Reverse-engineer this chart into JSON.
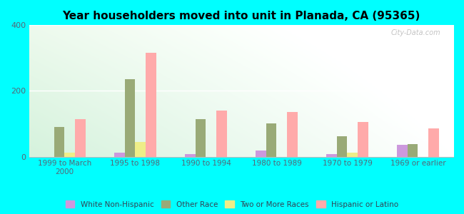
{
  "title": "Year householders moved into unit in Planada, CA (95365)",
  "categories": [
    "1999 to March\n2000",
    "1995 to 1998",
    "1990 to 1994",
    "1980 to 1989",
    "1970 to 1979",
    "1969 or earlier"
  ],
  "series": {
    "White Non-Hispanic": [
      0,
      12,
      8,
      18,
      8,
      35
    ],
    "Other Race": [
      90,
      235,
      115,
      100,
      62,
      38
    ],
    "Two or More Races": [
      12,
      45,
      0,
      0,
      12,
      0
    ],
    "Hispanic or Latino": [
      115,
      315,
      140,
      135,
      105,
      85
    ]
  },
  "colors": {
    "White Non-Hispanic": "#cc99dd",
    "Other Race": "#99aa77",
    "Two or More Races": "#eeee88",
    "Hispanic or Latino": "#ffaaaa"
  },
  "ylim": [
    0,
    400
  ],
  "yticks": [
    0,
    200,
    400
  ],
  "background_color": "#00ffff",
  "watermark": "City-Data.com",
  "bar_width": 0.15
}
